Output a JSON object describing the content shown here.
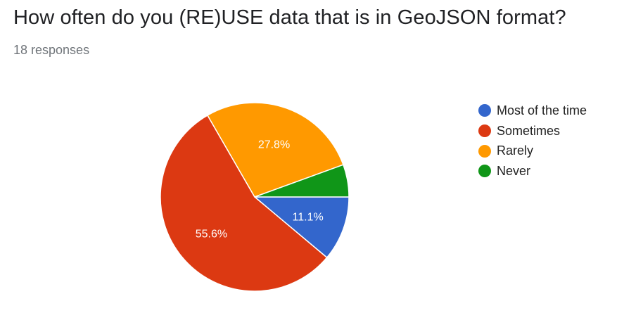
{
  "header": {
    "title": "How often do you (RE)USE data that is in GeoJSON format?",
    "responses": "18 responses"
  },
  "chart_data": {
    "type": "pie",
    "total_responses": 18,
    "legend_position": "right",
    "slices": [
      {
        "label": "Most of the time",
        "count": 2,
        "percent": 11.1,
        "display": "11.1%",
        "color": "#3366cc"
      },
      {
        "label": "Sometimes",
        "count": 10,
        "percent": 55.6,
        "display": "55.6%",
        "color": "#dc3912"
      },
      {
        "label": "Rarely",
        "count": 5,
        "percent": 27.8,
        "display": "27.8%",
        "color": "#ff9900"
      },
      {
        "label": "Never",
        "count": 1,
        "percent": 5.6,
        "display": "",
        "color": "#109618"
      }
    ]
  }
}
